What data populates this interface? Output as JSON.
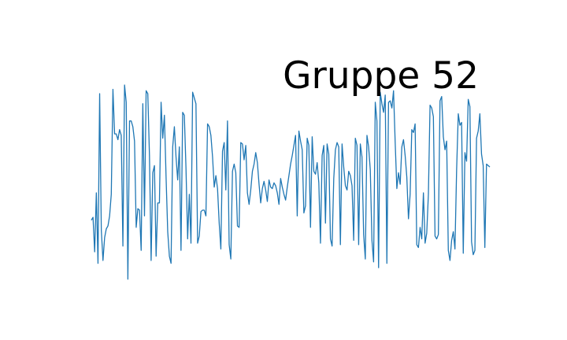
{
  "chart_data": {
    "type": "line",
    "title": "Gruppe 52",
    "axes_visible": false,
    "grid": false,
    "legend": "none",
    "xlim": [
      0,
      240
    ],
    "ylim": [
      -0.62,
      1.0
    ],
    "series": [
      {
        "color": "#1f77b4",
        "values": [
          -0.17,
          -0.15,
          -0.39,
          0.02,
          -0.47,
          0.71,
          -0.24,
          -0.45,
          -0.29,
          -0.23,
          -0.21,
          -0.14,
          0.01,
          0.74,
          0.43,
          0.43,
          0.39,
          0.46,
          0.42,
          -0.35,
          0.77,
          0.65,
          -0.58,
          0.52,
          0.52,
          0.48,
          0.38,
          -0.22,
          -0.09,
          -0.1,
          -0.38,
          0.64,
          -0.14,
          0.73,
          0.71,
          0.28,
          -0.45,
          0.16,
          0.21,
          -0.42,
          -0.05,
          -0.05,
          0.65,
          0.4,
          0.56,
          0.13,
          -0.25,
          -0.42,
          -0.47,
          0.34,
          0.48,
          0.27,
          0.11,
          0.34,
          -0.38,
          0.58,
          0.56,
          0.19,
          -0.3,
          0.01,
          -0.33,
          0.72,
          0.68,
          0.64,
          -0.33,
          -0.28,
          -0.11,
          -0.1,
          -0.1,
          -0.14,
          0.5,
          0.48,
          0.42,
          0.27,
          0.06,
          0.14,
          0.05,
          -0.19,
          -0.37,
          0.31,
          0.37,
          0.04,
          0.52,
          -0.34,
          -0.44,
          0.17,
          0.22,
          0.16,
          -0.21,
          -0.22,
          0.37,
          0.36,
          0.25,
          0.35,
          0.02,
          -0.06,
          0.04,
          0.17,
          0.22,
          0.3,
          0.23,
          0.08,
          -0.05,
          0.05,
          0.1,
          0.04,
          -0.04,
          0.11,
          0.06,
          0.05,
          0.09,
          0.07,
          0.02,
          -0.06,
          0.12,
          0.06,
          0.01,
          -0.03,
          0.06,
          0.14,
          0.22,
          0.28,
          0.35,
          0.42,
          -0.14,
          0.45,
          0.38,
          0.32,
          -0.12,
          -0.07,
          0.4,
          0.35,
          -0.22,
          0.41,
          0.17,
          0.15,
          0.23,
          0.09,
          -0.33,
          0.28,
          0.35,
          -0.19,
          0.36,
          0.29,
          -0.3,
          -0.35,
          0.12,
          0.32,
          0.37,
          0.34,
          -0.34,
          0.36,
          0.2,
          0.07,
          0.04,
          0.17,
          0.14,
          0.07,
          -0.31,
          0.4,
          0.35,
          -0.34,
          0.36,
          0.27,
          -0.27,
          -0.44,
          0.42,
          0.34,
          0.18,
          -0.31,
          -0.46,
          0.65,
          0.52,
          -0.5,
          0.72,
          0.64,
          0.58,
          0.7,
          -0.47,
          0.65,
          0.66,
          0.61,
          0.73,
          0.37,
          0.05,
          0.16,
          0.08,
          0.34,
          0.39,
          0.28,
          0.13,
          -0.16,
          0.01,
          0.46,
          0.44,
          0.5,
          -0.34,
          -0.36,
          -0.22,
          -0.3,
          0.02,
          -0.33,
          -0.26,
          0.01,
          0.63,
          0.61,
          0.55,
          -0.28,
          -0.3,
          -0.27,
          0.66,
          0.69,
          0.41,
          0.32,
          0.38,
          -0.38,
          -0.45,
          -0.31,
          -0.25,
          -0.37,
          0.18,
          0.57,
          0.49,
          0.51,
          -0.4,
          0.3,
          0.24,
          0.67,
          0.62,
          -0.32,
          -0.41,
          -0.38,
          0.4,
          0.45,
          0.57,
          0.29,
          0.21,
          -0.36,
          0.22,
          0.21,
          0.2
        ]
      }
    ]
  }
}
